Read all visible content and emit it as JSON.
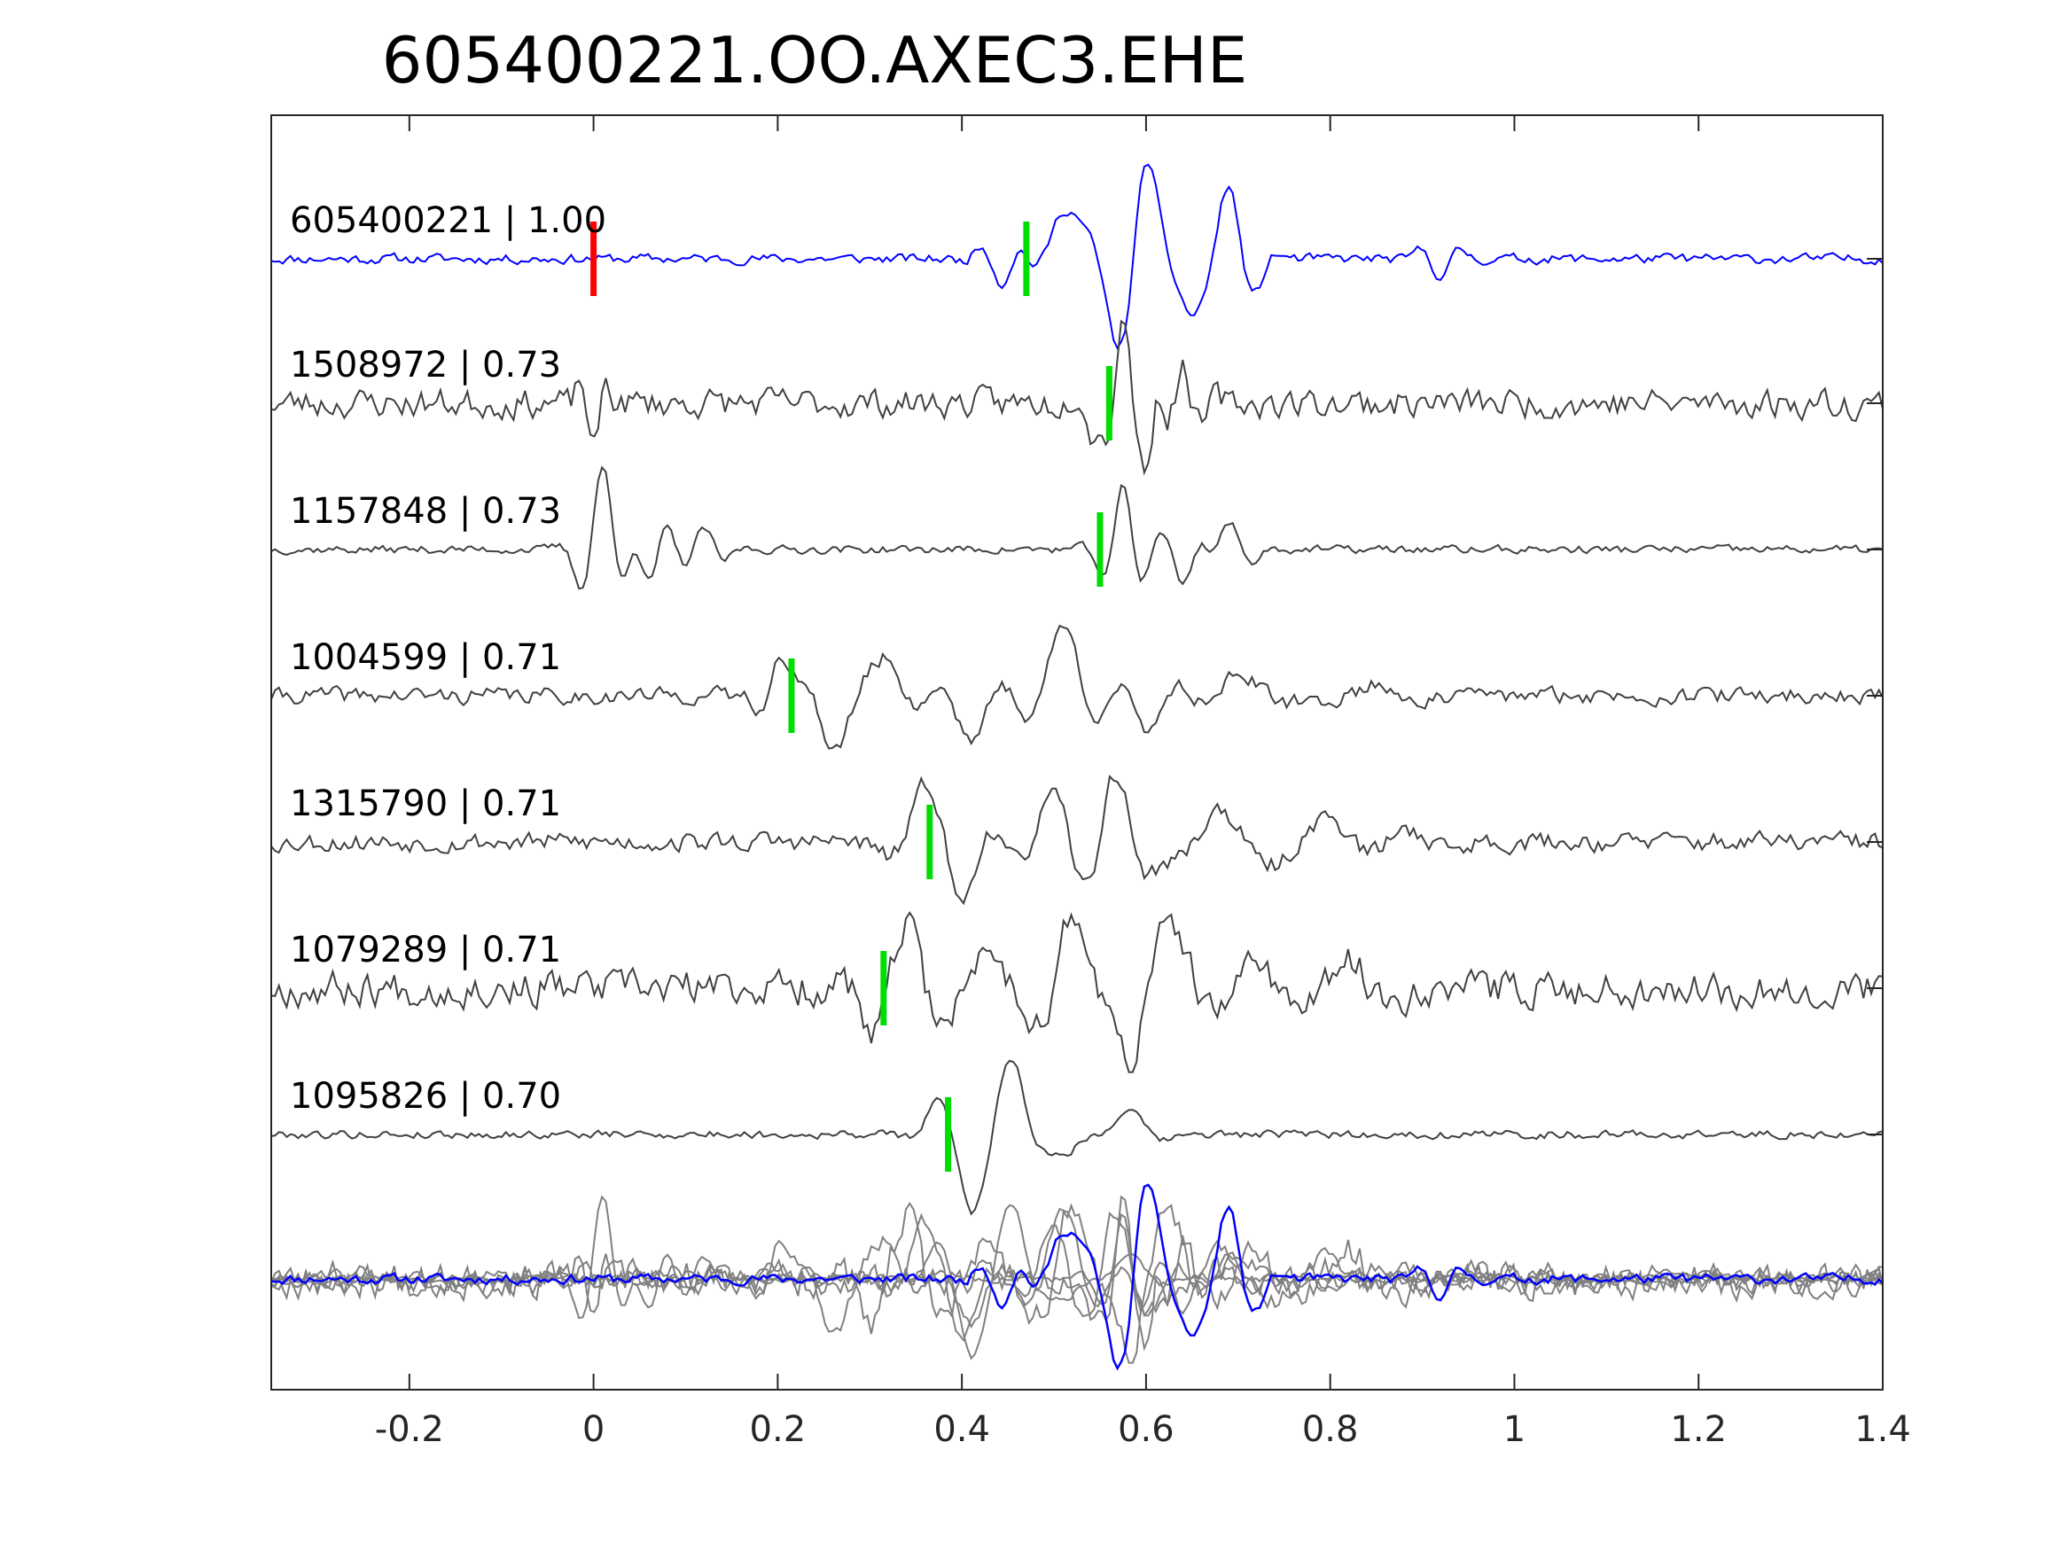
{
  "chart_data": {
    "type": "line",
    "title": "605400221.OO.AXEC3.EHE",
    "xlabel": "",
    "ylabel": "",
    "xlim": [
      -0.35,
      1.4
    ],
    "xticks": [
      -0.2,
      0,
      0.2,
      0.4,
      0.6,
      0.8,
      1,
      1.2,
      1.4
    ],
    "xtick_labels": [
      "-0.2",
      "0",
      "0.2",
      "0.4",
      "0.6",
      "0.8",
      "1",
      "1.2",
      "1.4"
    ],
    "grid": false,
    "colors": {
      "reference": "#0000ff",
      "neighbor": "#404040",
      "overlay_neighbor": "#808080",
      "reference_pick": "#ff0000",
      "neighbor_pick": "#00dd00"
    },
    "traces": [
      {
        "id": "605400221",
        "cc": "1.00",
        "label": "605400221 | 1.00",
        "reference": true,
        "picks": [
          {
            "t": 0.0,
            "color": "#ff0000"
          },
          {
            "t": 0.47,
            "color": "#00dd00"
          }
        ],
        "bursts": [
          {
            "t": 0.443,
            "a": -0.35,
            "f": 20,
            "w": 0.02
          },
          {
            "t": 0.51,
            "a": 0.65,
            "f": 10,
            "w": 0.022
          },
          {
            "t": 0.57,
            "a": -0.9,
            "f": 12,
            "w": 0.03
          },
          {
            "t": 0.6,
            "a": 1.0,
            "f": 14,
            "w": 0.022
          },
          {
            "t": 0.65,
            "a": -0.7,
            "f": 14,
            "w": 0.02
          },
          {
            "t": 0.69,
            "a": 0.9,
            "f": 16,
            "w": 0.018
          },
          {
            "t": 0.72,
            "a": -0.25,
            "f": 16,
            "w": 0.015
          },
          {
            "t": 0.92,
            "a": -0.25,
            "f": 20,
            "w": 0.02
          }
        ],
        "noise": 0.06,
        "seed": 11
      },
      {
        "id": "1508972",
        "cc": "0.73",
        "label": "1508972 | 0.73",
        "picks": [
          {
            "t": 0.56,
            "color": "#00dd00"
          }
        ],
        "bursts": [
          {
            "t": 0.0,
            "a": -0.7,
            "f": 30,
            "w": 0.012
          },
          {
            "t": 0.545,
            "a": -0.5,
            "f": 20,
            "w": 0.015
          },
          {
            "t": 0.575,
            "a": 1.2,
            "f": 26,
            "w": 0.012
          },
          {
            "t": 0.6,
            "a": -0.9,
            "f": 24,
            "w": 0.012
          },
          {
            "t": 0.64,
            "a": 0.5,
            "f": 24,
            "w": 0.02
          }
        ],
        "noise": 0.18,
        "seed": 23
      },
      {
        "id": "1157848",
        "cc": "0.73",
        "label": "1157848 | 0.73",
        "picks": [
          {
            "t": 0.55,
            "color": "#00dd00"
          }
        ],
        "bursts": [
          {
            "t": 0.01,
            "a": 1.2,
            "f": 18,
            "w": 0.02
          },
          {
            "t": 0.06,
            "a": -0.5,
            "f": 22,
            "w": 0.02
          },
          {
            "t": 0.12,
            "a": 0.3,
            "f": 20,
            "w": 0.02
          },
          {
            "t": 0.575,
            "a": 0.9,
            "f": 20,
            "w": 0.018
          },
          {
            "t": 0.64,
            "a": -0.5,
            "f": 18,
            "w": 0.02
          },
          {
            "t": 0.69,
            "a": 0.4,
            "f": 18,
            "w": 0.02
          }
        ],
        "noise": 0.05,
        "seed": 37
      },
      {
        "id": "1004599",
        "cc": "0.71",
        "label": "1004599 | 0.71",
        "picks": [
          {
            "t": 0.215,
            "color": "#00dd00"
          }
        ],
        "bursts": [
          {
            "t": 0.2,
            "a": 0.5,
            "f": 18,
            "w": 0.015
          },
          {
            "t": 0.26,
            "a": -0.8,
            "f": 12,
            "w": 0.03
          },
          {
            "t": 0.32,
            "a": 0.5,
            "f": 12,
            "w": 0.03
          },
          {
            "t": 0.41,
            "a": -0.6,
            "f": 10,
            "w": 0.03
          },
          {
            "t": 0.51,
            "a": 1.0,
            "f": 10,
            "w": 0.03
          },
          {
            "t": 0.6,
            "a": -0.5,
            "f": 12,
            "w": 0.03
          },
          {
            "t": 0.7,
            "a": 0.3,
            "f": 8,
            "w": 0.04
          },
          {
            "t": 0.85,
            "a": 0.15,
            "f": 8,
            "w": 0.05
          }
        ],
        "noise": 0.1,
        "seed": 41
      },
      {
        "id": "1315790",
        "cc": "0.71",
        "label": "1315790 | 0.71",
        "picks": [
          {
            "t": 0.365,
            "color": "#00dd00"
          }
        ],
        "bursts": [
          {
            "t": 0.36,
            "a": 0.6,
            "f": 10,
            "w": 0.03
          },
          {
            "t": 0.4,
            "a": -0.7,
            "f": 12,
            "w": 0.025
          },
          {
            "t": 0.5,
            "a": 0.6,
            "f": 10,
            "w": 0.04
          },
          {
            "t": 0.565,
            "a": 1.0,
            "f": 12,
            "w": 0.03
          },
          {
            "t": 0.68,
            "a": 0.45,
            "f": 9,
            "w": 0.05
          },
          {
            "t": 0.8,
            "a": 0.35,
            "f": 8,
            "w": 0.04
          },
          {
            "t": 0.88,
            "a": 0.2,
            "f": 8,
            "w": 0.04
          }
        ],
        "noise": 0.12,
        "seed": 53
      },
      {
        "id": "1079289",
        "cc": "0.71",
        "label": "1079289 | 0.71",
        "picks": [
          {
            "t": 0.315,
            "color": "#00dd00"
          }
        ],
        "bursts": [
          {
            "t": 0.3,
            "a": -0.5,
            "f": 12,
            "w": 0.02
          },
          {
            "t": 0.34,
            "a": 0.8,
            "f": 12,
            "w": 0.025
          },
          {
            "t": 0.43,
            "a": 0.6,
            "f": 10,
            "w": 0.03
          },
          {
            "t": 0.52,
            "a": 1.0,
            "f": 12,
            "w": 0.025
          },
          {
            "t": 0.58,
            "a": -0.8,
            "f": 12,
            "w": 0.025
          },
          {
            "t": 0.63,
            "a": 0.8,
            "f": 10,
            "w": 0.03
          },
          {
            "t": 0.72,
            "a": 0.4,
            "f": 10,
            "w": 0.03
          },
          {
            "t": 0.82,
            "a": 0.4,
            "f": 10,
            "w": 0.04
          }
        ],
        "noise": 0.22,
        "seed": 67
      },
      {
        "id": "1095826",
        "cc": "0.70",
        "label": "1095826 | 0.70",
        "picks": [
          {
            "t": 0.385,
            "color": "#00dd00"
          }
        ],
        "bursts": [
          {
            "t": 0.37,
            "a": 0.3,
            "f": 12,
            "w": 0.015
          },
          {
            "t": 0.41,
            "a": -1.0,
            "f": 12,
            "w": 0.02
          },
          {
            "t": 0.455,
            "a": 1.0,
            "f": 12,
            "w": 0.02
          },
          {
            "t": 0.51,
            "a": -0.3,
            "f": 12,
            "w": 0.02
          },
          {
            "t": 0.58,
            "a": 0.35,
            "f": 10,
            "w": 0.025
          }
        ],
        "noise": 0.05,
        "seed": 79
      }
    ]
  }
}
